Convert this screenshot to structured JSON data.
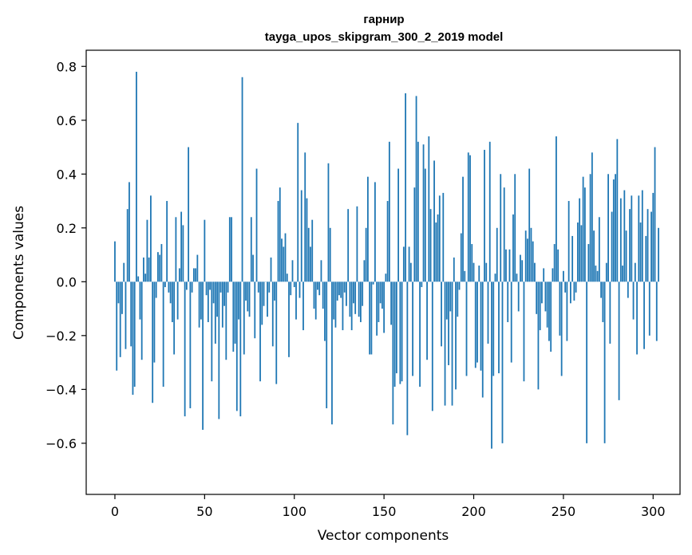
{
  "chart_data": {
    "type": "bar",
    "title_line1": "гарнир",
    "title_line2": "tayga_upos_skipgram_300_2_2019 model",
    "xlabel": "Vector components",
    "ylabel": "Components values",
    "xlim": [
      -16,
      315
    ],
    "ylim": [
      -0.79,
      0.86
    ],
    "xticks": [
      0,
      50,
      100,
      150,
      200,
      250,
      300
    ],
    "xtick_labels": [
      "0",
      "50",
      "100",
      "150",
      "200",
      "250",
      "300"
    ],
    "yticks": [
      -0.6,
      -0.4,
      -0.2,
      0.0,
      0.2,
      0.4,
      0.6,
      0.8
    ],
    "ytick_labels": [
      "−0.6",
      "−0.4",
      "−0.2",
      "0.0",
      "0.2",
      "0.4",
      "0.6",
      "0.8"
    ],
    "bar_color": "#1f77b4",
    "values": [
      0.15,
      -0.33,
      -0.08,
      -0.28,
      -0.12,
      0.07,
      -0.25,
      0.27,
      0.37,
      -0.24,
      -0.42,
      -0.39,
      0.78,
      0.02,
      -0.14,
      -0.29,
      0.09,
      0.03,
      0.23,
      0.09,
      0.32,
      -0.45,
      -0.3,
      -0.06,
      0.11,
      0.1,
      0.14,
      -0.39,
      -0.02,
      0.3,
      -0.04,
      -0.08,
      -0.15,
      -0.27,
      0.24,
      -0.14,
      0.05,
      0.26,
      0.21,
      -0.5,
      -0.03,
      0.5,
      -0.47,
      -0.04,
      0.05,
      0.05,
      0.1,
      -0.17,
      -0.14,
      -0.55,
      0.23,
      -0.05,
      -0.15,
      -0.03,
      -0.37,
      -0.08,
      -0.23,
      -0.13,
      -0.51,
      -0.04,
      -0.17,
      -0.09,
      -0.29,
      -0.04,
      0.24,
      0.24,
      -0.26,
      -0.23,
      -0.48,
      -0.14,
      -0.5,
      0.76,
      -0.27,
      -0.07,
      -0.11,
      -0.13,
      0.24,
      0.1,
      -0.21,
      0.42,
      -0.04,
      -0.37,
      -0.16,
      -0.09,
      0.0,
      -0.13,
      -0.04,
      0.09,
      -0.24,
      -0.07,
      -0.38,
      0.3,
      0.35,
      0.16,
      0.13,
      0.18,
      0.03,
      -0.28,
      -0.05,
      0.08,
      -0.02,
      -0.14,
      0.59,
      -0.06,
      0.34,
      -0.18,
      0.48,
      0.31,
      0.2,
      0.13,
      0.23,
      -0.1,
      -0.14,
      -0.03,
      -0.05,
      0.08,
      -0.1,
      -0.22,
      -0.47,
      0.44,
      0.2,
      -0.53,
      -0.14,
      -0.17,
      -0.07,
      -0.05,
      -0.06,
      -0.18,
      -0.04,
      -0.09,
      0.27,
      -0.13,
      -0.18,
      -0.08,
      -0.12,
      0.28,
      -0.13,
      -0.15,
      -0.09,
      0.08,
      0.2,
      0.39,
      -0.27,
      -0.27,
      -0.01,
      0.37,
      -0.2,
      -0.15,
      -0.08,
      -0.1,
      -0.19,
      0.03,
      0.3,
      0.52,
      -0.16,
      -0.53,
      -0.39,
      -0.34,
      0.42,
      -0.38,
      -0.37,
      0.13,
      0.7,
      -0.57,
      0.13,
      0.07,
      -0.35,
      0.35,
      0.69,
      0.52,
      -0.39,
      -0.02,
      0.51,
      0.42,
      -0.29,
      0.54,
      0.27,
      -0.48,
      0.45,
      0.22,
      0.25,
      0.32,
      -0.24,
      0.33,
      -0.46,
      -0.14,
      -0.31,
      -0.11,
      -0.46,
      0.09,
      -0.4,
      -0.13,
      -0.03,
      0.18,
      0.39,
      0.04,
      -0.35,
      0.48,
      0.47,
      0.14,
      0.07,
      -0.32,
      -0.3,
      0.06,
      -0.33,
      -0.43,
      0.49,
      0.07,
      -0.23,
      0.52,
      -0.62,
      -0.35,
      0.03,
      0.2,
      -0.34,
      0.4,
      -0.6,
      0.35,
      0.12,
      -0.15,
      0.12,
      -0.3,
      0.25,
      0.4,
      0.03,
      -0.11,
      0.1,
      0.08,
      -0.37,
      0.19,
      0.16,
      0.42,
      0.2,
      0.15,
      0.07,
      -0.12,
      -0.4,
      -0.18,
      -0.08,
      0.05,
      -0.11,
      -0.17,
      -0.22,
      -0.26,
      0.05,
      0.14,
      0.54,
      0.12,
      -0.2,
      -0.35,
      0.04,
      -0.04,
      -0.22,
      0.3,
      -0.08,
      0.17,
      -0.07,
      -0.04,
      0.22,
      0.31,
      0.21,
      0.39,
      0.35,
      -0.6,
      0.14,
      0.4,
      0.48,
      0.19,
      0.06,
      0.04,
      0.24,
      -0.06,
      -0.15,
      -0.6,
      0.07,
      0.4,
      -0.23,
      0.26,
      0.38,
      0.4,
      0.53,
      -0.44,
      0.31,
      0.06,
      0.34,
      0.19,
      -0.06,
      0.27,
      0.32,
      -0.14,
      0.07,
      -0.27,
      0.32,
      0.22,
      0.34,
      -0.25,
      0.17,
      0.27,
      -0.2,
      0.26,
      0.33,
      0.5,
      -0.22,
      0.2
    ]
  }
}
